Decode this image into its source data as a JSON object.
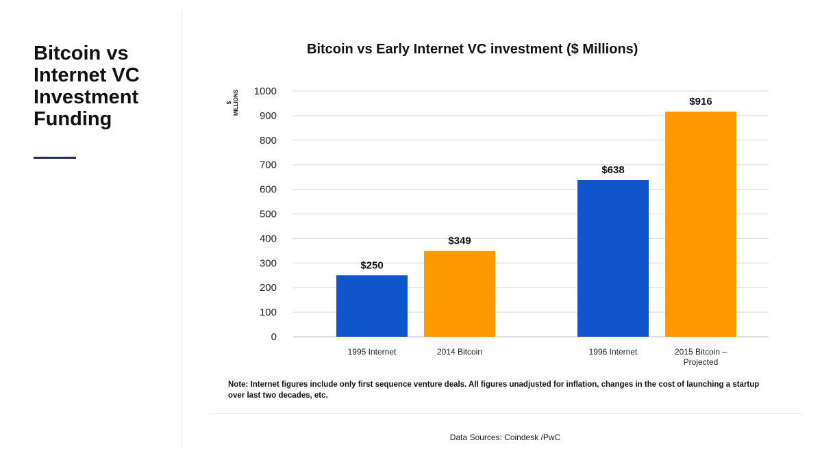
{
  "slide": {
    "title": "Bitcoin vs\nInternet VC\nInvestment\nFunding"
  },
  "chart_data": {
    "type": "bar",
    "title": "Bitcoin vs Early Internet VC investment ($ Millions)",
    "ylabel": "$ MILLIONS",
    "xlabel": "",
    "ylim": [
      0,
      1000
    ],
    "yticks": [
      0,
      100,
      200,
      300,
      400,
      500,
      600,
      700,
      800,
      900,
      1000
    ],
    "grid": true,
    "categories": [
      "1995 Internet",
      "2014 Bitcoin",
      "1996 Internet",
      "2015 Bitcoin – Projected"
    ],
    "category_lines": [
      [
        "1995 Internet"
      ],
      [
        "2014 Bitcoin"
      ],
      [
        "1996 Internet"
      ],
      [
        "2015 Bitcoin –",
        "Projected"
      ]
    ],
    "values": [
      250,
      349,
      638,
      916
    ],
    "data_labels": [
      "$250",
      "$349",
      "$638",
      "$916"
    ],
    "colors": [
      "#1155cc",
      "#ff9900",
      "#1155cc",
      "#ff9900"
    ]
  },
  "note": "Note: Internet figures include only first sequence venture deals. All figures unadjusted for inflation, changes in the cost of launching a startup over last two decades, etc.",
  "sources": "Data Sources: Coindesk /PwC"
}
